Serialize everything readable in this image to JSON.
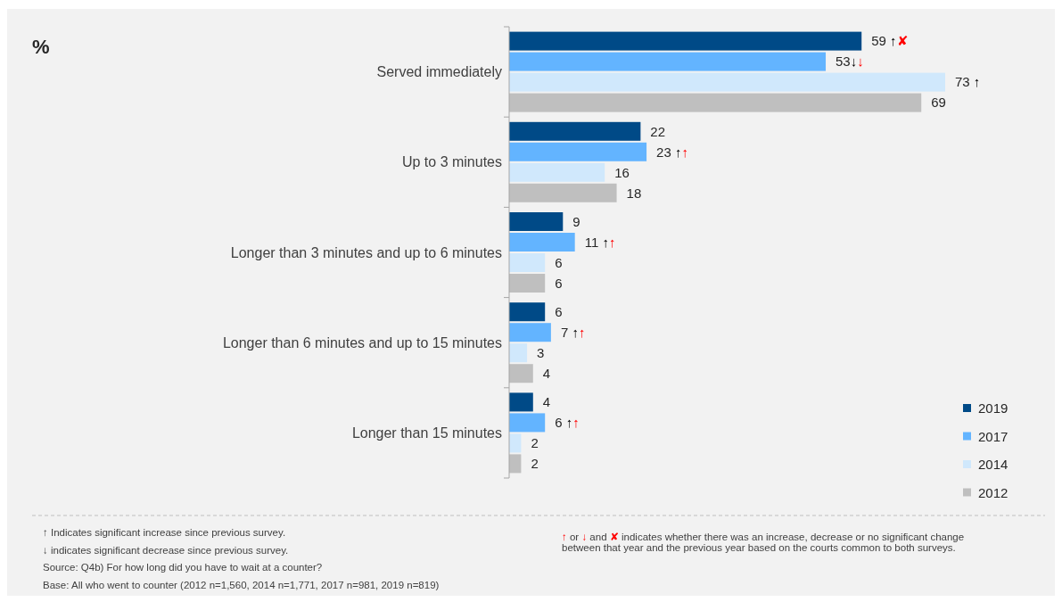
{
  "chart_data": {
    "type": "bar",
    "orientation": "horizontal",
    "title": "%",
    "categories": [
      "Served immediately",
      "Up to 3 minutes",
      "Longer than 3 minutes and up to 6 minutes",
      "Longer than 6 minutes and up to 15 minutes",
      "Longer than 15 minutes"
    ],
    "series": [
      {
        "name": "2019",
        "color": "#004a87",
        "values": [
          59,
          22,
          9,
          6,
          4
        ],
        "value_labels": [
          "59 ↑✘",
          "22",
          "9",
          "6",
          "4"
        ]
      },
      {
        "name": "2017",
        "color": "#63b4ff",
        "values": [
          53,
          23,
          11,
          7,
          6
        ],
        "value_labels": [
          "53↓↓",
          "23 ↑↑",
          "11 ↑↑",
          "7 ↑↑",
          "6 ↑↑"
        ]
      },
      {
        "name": "2014",
        "color": "#d0e8fc",
        "values": [
          73,
          16,
          6,
          3,
          2
        ],
        "value_labels": [
          "73 ↑",
          "16",
          "6",
          "3",
          "2"
        ]
      },
      {
        "name": "2012",
        "color": "#bfbfbf",
        "values": [
          69,
          18,
          6,
          4,
          2
        ],
        "value_labels": [
          "69",
          "18",
          "6",
          "4",
          "2"
        ]
      }
    ],
    "legend": "bottom right",
    "annotations": [
      "↑ Indicates significant increase since previous survey.",
      "↓ indicates significant decrease since previous survey.",
      "Source: Q4b) For how long did you have to wait at a counter?",
      "Base: All who went to counter (2012 n=1,560, 2014 n=1,771, 2017 n=981, 2019 n=819)",
      "↑ or ↓ and ✘ indicates whether there was an increase, decrease or no significant change between that year and the previous year based on the courts common to both surveys."
    ]
  }
}
